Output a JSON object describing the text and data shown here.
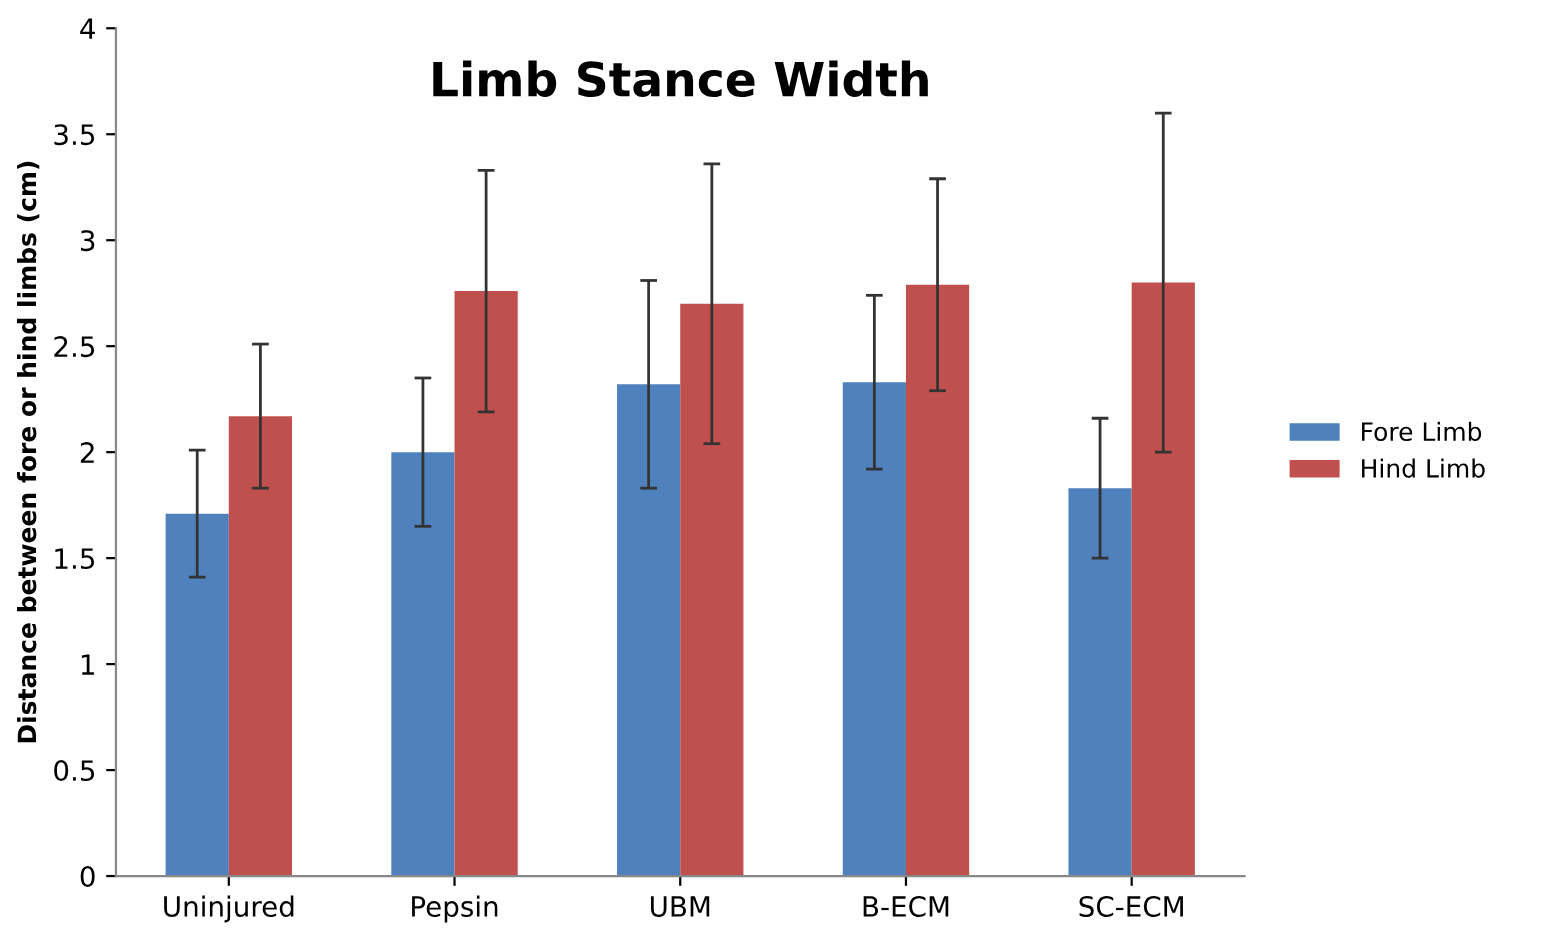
{
  "chart_data": {
    "type": "bar",
    "title": "Limb Stance Width",
    "ylabel": "Distance between fore or hind limbs (cm)",
    "categories": [
      "Uninjured",
      "Pepsin",
      "UBM",
      "B-ECM",
      "SC-ECM"
    ],
    "series": [
      {
        "name": "Fore Limb",
        "color": "#4f81bd",
        "values": [
          1.71,
          2.0,
          2.32,
          2.33,
          1.83
        ],
        "errors": [
          0.3,
          0.35,
          0.49,
          0.41,
          0.33
        ]
      },
      {
        "name": "Hind Limb",
        "color": "#c0504d",
        "values": [
          2.17,
          2.76,
          2.7,
          2.79,
          2.8
        ],
        "errors": [
          0.34,
          0.57,
          0.66,
          0.5,
          0.8
        ]
      }
    ],
    "ylim": [
      0,
      4
    ],
    "yticks": [
      0,
      0.5,
      1,
      1.5,
      2,
      2.5,
      3,
      3.5,
      4
    ],
    "grid": false,
    "legend": "right"
  }
}
